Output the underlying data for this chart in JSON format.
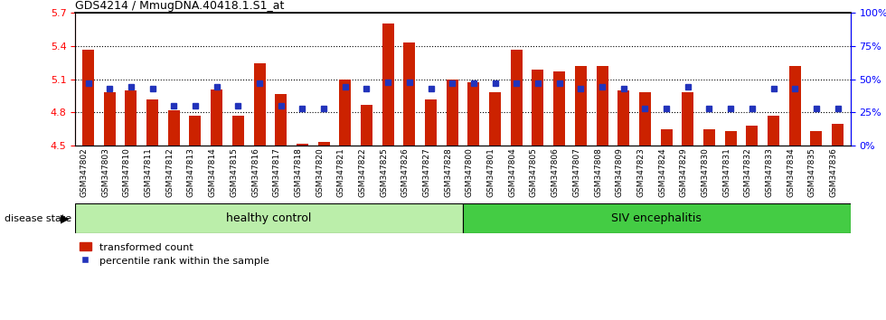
{
  "title": "GDS4214 / MmugDNA.40418.1.S1_at",
  "samples": [
    "GSM347802",
    "GSM347803",
    "GSM347810",
    "GSM347811",
    "GSM347812",
    "GSM347813",
    "GSM347814",
    "GSM347815",
    "GSM347816",
    "GSM347817",
    "GSM347818",
    "GSM347820",
    "GSM347821",
    "GSM347822",
    "GSM347825",
    "GSM347826",
    "GSM347827",
    "GSM347828",
    "GSM347800",
    "GSM347801",
    "GSM347804",
    "GSM347805",
    "GSM347806",
    "GSM347807",
    "GSM347808",
    "GSM347809",
    "GSM347823",
    "GSM347824",
    "GSM347829",
    "GSM347830",
    "GSM347831",
    "GSM347832",
    "GSM347833",
    "GSM347834",
    "GSM347835",
    "GSM347836"
  ],
  "bar_values": [
    5.37,
    4.98,
    5.0,
    4.92,
    4.82,
    4.77,
    5.01,
    4.77,
    5.24,
    4.97,
    4.52,
    4.53,
    5.1,
    4.87,
    5.6,
    5.43,
    4.92,
    5.1,
    5.07,
    4.98,
    5.37,
    5.19,
    5.17,
    5.22,
    5.22,
    5.0,
    4.98,
    4.65,
    4.98,
    4.65,
    4.63,
    4.68,
    4.77,
    5.22,
    4.63,
    4.7
  ],
  "percentile_values": [
    47,
    43,
    44,
    43,
    30,
    30,
    44,
    30,
    47,
    30,
    28,
    28,
    44,
    43,
    48,
    48,
    43,
    47,
    47,
    47,
    47,
    47,
    47,
    43,
    44,
    43,
    28,
    28,
    44,
    28,
    28,
    28,
    43,
    43,
    28,
    28
  ],
  "healthy_count": 18,
  "siv_count": 18,
  "ylim_left": [
    4.5,
    5.7
  ],
  "ylim_right": [
    0,
    100
  ],
  "yticks_left": [
    4.5,
    4.8,
    5.1,
    5.4,
    5.7
  ],
  "yticks_right": [
    0,
    25,
    50,
    75,
    100
  ],
  "bar_color": "#cc2200",
  "percentile_color": "#2233bb",
  "healthy_color": "#bbeeaa",
  "siv_color": "#44cc44",
  "xtick_bg_color": "#cccccc",
  "legend_bar_label": "transformed count",
  "legend_pct_label": "percentile rank within the sample",
  "healthy_label": "healthy control",
  "siv_label": "SIV encephalitis",
  "disease_state_label": "disease state"
}
